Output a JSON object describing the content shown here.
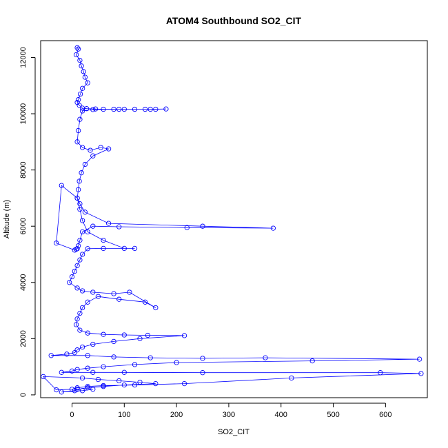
{
  "chart_data": {
    "type": "scatter",
    "title": "ATOM4 Southbound SO2_CIT",
    "xlabel": "SO2_CIT",
    "ylabel": "Altitude (m)",
    "xlim": [
      -60,
      680
    ],
    "ylim": [
      -100,
      12600
    ],
    "x_ticks": [
      0,
      100,
      200,
      300,
      400,
      500,
      600
    ],
    "y_ticks": [
      0,
      2000,
      4000,
      6000,
      8000,
      10000,
      12000
    ],
    "grid": false,
    "legend": "none",
    "marker": "open-circle",
    "connected": true,
    "color": "#0000ff",
    "series": [
      {
        "x": [
          10,
          12,
          8,
          15,
          18,
          22,
          25,
          30,
          20,
          16,
          12,
          10,
          14,
          20,
          28,
          45,
          60,
          80,
          100,
          120,
          140,
          160,
          180,
          150,
          90,
          40,
          20,
          15,
          12,
          10,
          20,
          35,
          55,
          70,
          40,
          25,
          18,
          14,
          12,
          10,
          15,
          25,
          70,
          250,
          385,
          220,
          90,
          40,
          20,
          15,
          12,
          10,
          8,
          5,
          -30,
          -20,
          10,
          15,
          20,
          30,
          60,
          100,
          120,
          60,
          30,
          20,
          15,
          10,
          5,
          0,
          -5,
          10,
          20,
          40,
          80,
          110,
          160,
          140,
          90,
          50,
          30,
          20,
          15,
          10,
          8,
          15,
          30,
          60,
          100,
          145,
          215,
          130,
          80,
          40,
          20,
          10,
          5,
          -10,
          -40,
          30,
          80,
          150,
          250,
          370,
          665,
          460,
          200,
          120,
          60,
          30,
          10,
          0,
          -20,
          40,
          100,
          250,
          590,
          668,
          420,
          215,
          120,
          60,
          30,
          10,
          0,
          -30,
          -55,
          20,
          50,
          90,
          130,
          160,
          100,
          60,
          30,
          10,
          5,
          -20,
          20,
          40
        ],
        "y": [
          12350,
          12300,
          12100,
          11900,
          11700,
          11500,
          11300,
          11100,
          10900,
          10700,
          10500,
          10400,
          10300,
          10200,
          10180,
          10170,
          10160,
          10160,
          10160,
          10160,
          10160,
          10160,
          10170,
          10160,
          10160,
          10150,
          10100,
          9800,
          9400,
          9000,
          8800,
          8700,
          8800,
          8750,
          8500,
          8200,
          7900,
          7600,
          7300,
          7000,
          6800,
          6500,
          6100,
          6000,
          5930,
          5950,
          5980,
          6000,
          5800,
          5500,
          5300,
          5200,
          5180,
          5150,
          5400,
          7450,
          7000,
          6600,
          6200,
          5800,
          5500,
          5210,
          5210,
          5210,
          5200,
          5000,
          4800,
          4600,
          4400,
          4200,
          4000,
          3800,
          3700,
          3650,
          3600,
          3650,
          3100,
          3300,
          3400,
          3500,
          3300,
          3100,
          2900,
          2700,
          2500,
          2300,
          2200,
          2150,
          2130,
          2120,
          2110,
          2000,
          1900,
          1800,
          1700,
          1600,
          1500,
          1450,
          1400,
          1400,
          1350,
          1320,
          1300,
          1320,
          1270,
          1210,
          1150,
          1080,
          1000,
          950,
          900,
          850,
          800,
          800,
          800,
          790,
          790,
          760,
          600,
          400,
          350,
          330,
          300,
          250,
          200,
          180,
          650,
          600,
          550,
          500,
          450,
          400,
          350,
          300,
          250,
          200,
          150,
          100,
          150,
          200
        ]
      }
    ]
  }
}
